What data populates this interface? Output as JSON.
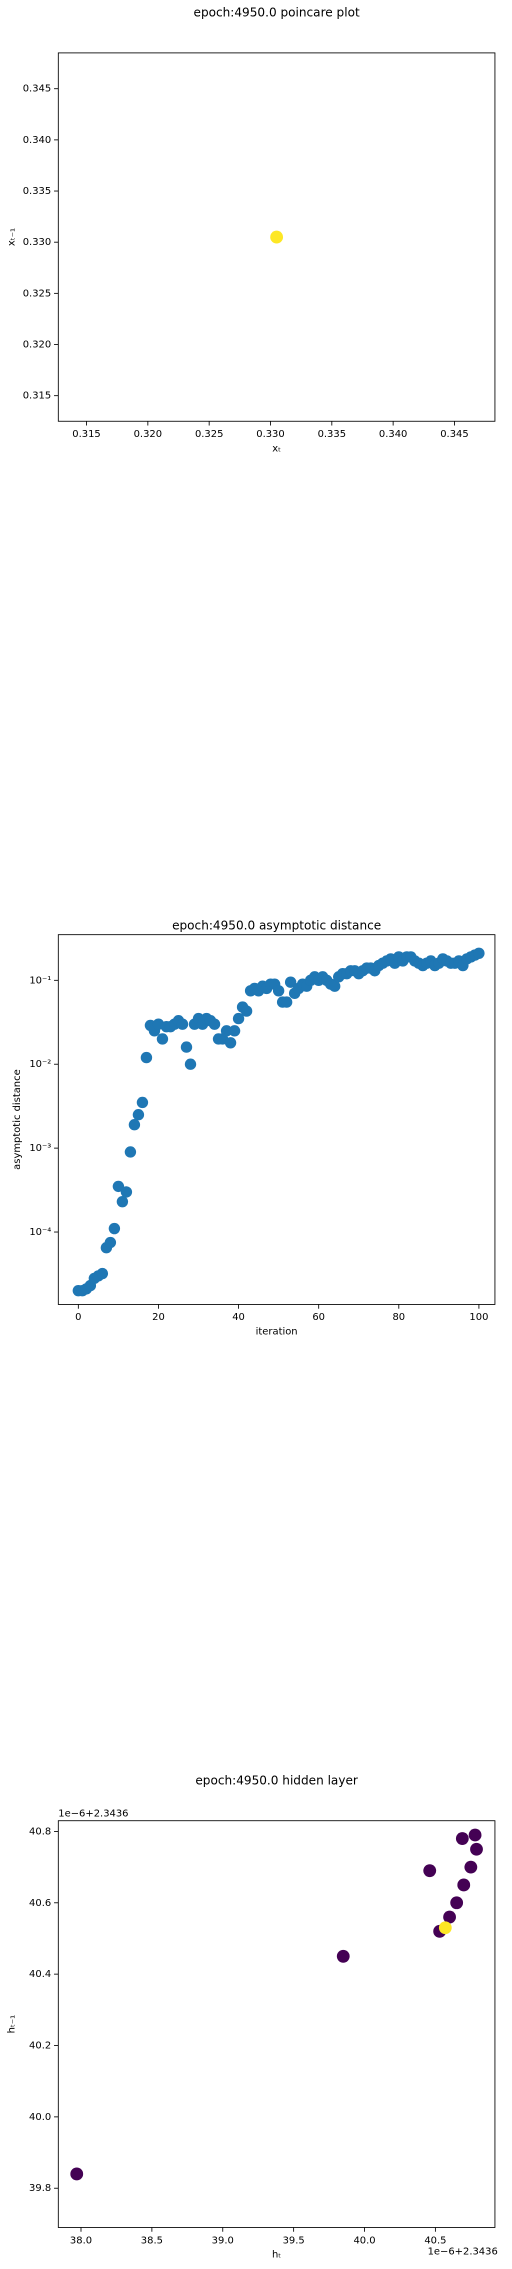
{
  "chart_data": [
    {
      "type": "scatter",
      "title": "epoch:4950.0 poincare plot",
      "x_label": "xₜ",
      "y_label": "xₜ₋₁",
      "x": [
        0.3305
      ],
      "y": [
        0.3305
      ],
      "color": "#fde725",
      "xlim": [
        0.3127,
        0.3483
      ],
      "ylim": [
        0.3125,
        0.3485
      ],
      "xticks": [
        0.315,
        {
          "value": 0.32,
          "label": "0.320"
        },
        0.325,
        {
          "value": 0.33,
          "label": "0.330"
        },
        0.335,
        {
          "value": 0.34,
          "label": "0.340"
        },
        0.345
      ],
      "yticks": [
        0.315,
        {
          "value": 0.32,
          "label": "0.320"
        },
        0.325,
        {
          "value": 0.33,
          "label": "0.330"
        },
        0.335,
        {
          "value": 0.34,
          "label": "0.340"
        },
        0.345
      ]
    },
    {
      "type": "scatter",
      "title": "epoch:4950.0 asymptotic distance",
      "x_label": "iteration",
      "y_label": "asymptotic distance",
      "yscale": "log",
      "color": "#1f77b4",
      "x": [
        0,
        1,
        2,
        3,
        4,
        5,
        6,
        7,
        8,
        9,
        10,
        11,
        12,
        13,
        14,
        15,
        16,
        17,
        18,
        19,
        20,
        21,
        22,
        23,
        24,
        25,
        26,
        27,
        28,
        29,
        30,
        31,
        32,
        33,
        34,
        35,
        36,
        37,
        38,
        39,
        40,
        41,
        42,
        43,
        44,
        45,
        46,
        47,
        48,
        49,
        50,
        51,
        52,
        53,
        54,
        55,
        56,
        57,
        58,
        59,
        60,
        61,
        62,
        63,
        64,
        65,
        66,
        67,
        68,
        69,
        70,
        71,
        72,
        73,
        74,
        75,
        76,
        77,
        78,
        79,
        80,
        81,
        82,
        83,
        84,
        85,
        86,
        87,
        88,
        89,
        90,
        91,
        92,
        93,
        94,
        95,
        96,
        97,
        98,
        99,
        100
      ],
      "y": [
        2e-05,
        2e-05,
        2.1e-05,
        2.3e-05,
        2.8e-05,
        3e-05,
        3.2e-05,
        6.5e-05,
        7.5e-05,
        0.00011,
        0.00035,
        0.00023,
        0.0003,
        0.0009,
        0.0019,
        0.0025,
        0.0035,
        0.012,
        0.029,
        0.025,
        0.03,
        0.02,
        0.028,
        0.028,
        0.03,
        0.033,
        0.03,
        0.016,
        0.01,
        0.03,
        0.035,
        0.03,
        0.035,
        0.033,
        0.03,
        0.02,
        0.02,
        0.025,
        0.018,
        0.025,
        0.035,
        0.048,
        0.043,
        0.075,
        0.08,
        0.075,
        0.085,
        0.08,
        0.09,
        0.09,
        0.075,
        0.055,
        0.055,
        0.095,
        0.07,
        0.08,
        0.09,
        0.085,
        0.1,
        0.11,
        0.1,
        0.11,
        0.1,
        0.09,
        0.085,
        0.11,
        0.12,
        0.12,
        0.13,
        0.13,
        0.12,
        0.13,
        0.14,
        0.14,
        0.13,
        0.15,
        0.16,
        0.17,
        0.18,
        0.16,
        0.19,
        0.17,
        0.19,
        0.19,
        0.17,
        0.16,
        0.15,
        0.16,
        0.17,
        0.15,
        0.16,
        0.18,
        0.17,
        0.16,
        0.16,
        0.17,
        0.15,
        0.18,
        0.19,
        0.2,
        0.21
      ],
      "xlim": [
        -5,
        104
      ],
      "ylim": [
        1.37e-05,
        0.35
      ],
      "xticks": [
        0,
        20,
        40,
        60,
        80,
        100
      ],
      "yticks": [
        {
          "value": 0.0001,
          "label": "10⁻⁴"
        },
        {
          "value": 0.001,
          "label": "10⁻³"
        },
        {
          "value": 0.01,
          "label": "10⁻²"
        },
        {
          "value": 0.1,
          "label": "10⁻¹"
        }
      ]
    },
    {
      "type": "scatter",
      "title": "epoch:4950.0 hidden layer",
      "x_label": "hₜ",
      "y_label": "hₜ₋₁",
      "x_offset_label": "1e−6+2.3436",
      "y_offset_label": "1e−6+2.3436",
      "x": [
        37.97,
        39.85,
        40.46,
        40.53,
        40.6,
        40.65,
        40.7,
        40.75,
        40.79,
        40.78,
        40.69,
        40.57
      ],
      "y": [
        39.84,
        40.45,
        40.69,
        40.52,
        40.56,
        40.6,
        40.65,
        40.7,
        40.75,
        40.79,
        40.78,
        40.53
      ],
      "colors": [
        "#440154",
        "#440154",
        "#440154",
        "#440154",
        "#440154",
        "#440154",
        "#440154",
        "#440154",
        "#440154",
        "#440154",
        "#440154",
        "#fde725"
      ],
      "xlim": [
        37.84,
        40.92
      ],
      "ylim": [
        39.69,
        40.83
      ],
      "xticks": [
        {
          "value": 38,
          "label": "38.0"
        },
        38.5,
        {
          "value": 39,
          "label": "39.0"
        },
        39.5,
        {
          "value": 40,
          "label": "40.0"
        },
        40.5
      ],
      "yticks": [
        39.8,
        {
          "value": 40,
          "label": "40.0"
        },
        40.2,
        40.4,
        40.6,
        40.8
      ]
    }
  ]
}
